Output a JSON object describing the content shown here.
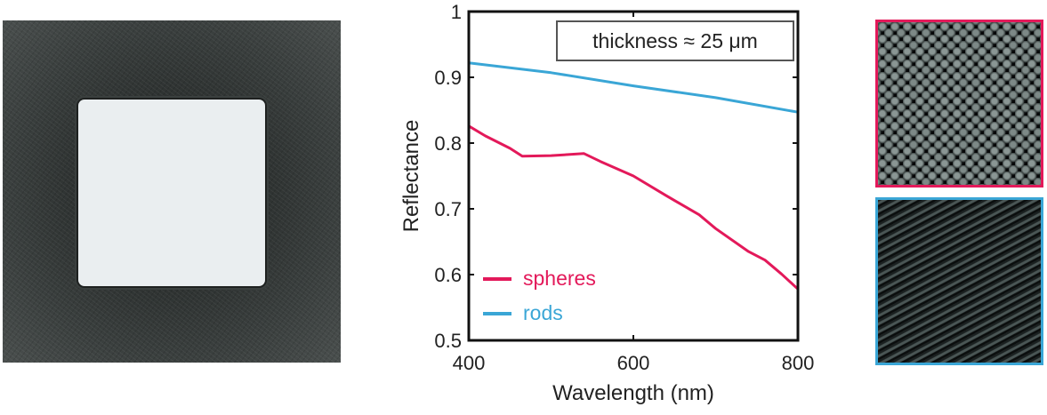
{
  "photo": {
    "label": "Sample photograph: white square on dark substrate"
  },
  "micrographs": [
    {
      "name": "spheres",
      "border_color": "#e3195a"
    },
    {
      "name": "rods",
      "border_color": "#3aa6d6"
    }
  ],
  "chart_data": {
    "type": "line",
    "title": "",
    "xlabel": "Wavelength (nm)",
    "ylabel": "Reflectance",
    "xlim": [
      400,
      800
    ],
    "ylim": [
      0.5,
      1.0
    ],
    "xticks": [
      400,
      600,
      800
    ],
    "xtick_labels": [
      "400",
      "600",
      "800"
    ],
    "yticks": [
      0.5,
      0.6,
      0.7,
      0.8,
      0.9,
      1.0
    ],
    "ytick_labels": [
      "0.5",
      "0.6",
      "0.7",
      "0.8",
      "0.9",
      "1"
    ],
    "grid": false,
    "legend_position": "bottom-left",
    "annotation": "thickness ≈ 25 μm",
    "series": [
      {
        "name": "spheres",
        "color": "#e3195a",
        "x": [
          400,
          420,
          450,
          465,
          500,
          540,
          560,
          600,
          640,
          680,
          700,
          740,
          760,
          780,
          800
        ],
        "y": [
          0.826,
          0.811,
          0.792,
          0.78,
          0.781,
          0.784,
          0.772,
          0.75,
          0.72,
          0.691,
          0.67,
          0.635,
          0.622,
          0.601,
          0.578
        ]
      },
      {
        "name": "rods",
        "color": "#3aa6d6",
        "x": [
          400,
          500,
          600,
          700,
          800
        ],
        "y": [
          0.922,
          0.907,
          0.887,
          0.869,
          0.847
        ]
      }
    ]
  }
}
